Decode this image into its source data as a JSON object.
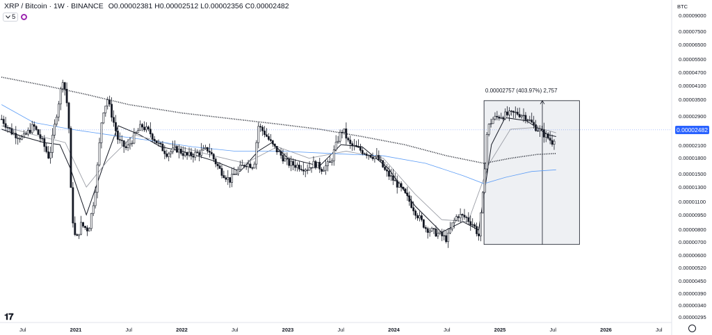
{
  "header": {
    "symbol": "XRP / Bitcoin · 1W · BINANCE",
    "open_label": "O",
    "open": "0.00002381",
    "high_label": "H",
    "high": "0.00002512",
    "low_label": "L",
    "low": "0.00002356",
    "close_label": "C",
    "close": "0.00002482",
    "indicators_count": "5"
  },
  "scale_currency": "BTC",
  "current_price": "0.00002482",
  "measure_label": "0.00002757 (403.97%) 2,757",
  "colors": {
    "candle": "#131722",
    "ma_black": "#131722",
    "ma_gray": "#9b9ea6",
    "ma_blue": "#5b9cf6",
    "ma_dotted": "#131722",
    "measure_fill": "#eef0f3",
    "badge": "#2962ff"
  },
  "icons": {
    "logo": "tradingview-logo-icon",
    "settings": "gear-icon",
    "toggle": "chevron-down-icon",
    "indicator": "indicator-circle-icon"
  },
  "chart_data": {
    "type": "candlestick",
    "title": "XRP / Bitcoin · 1W · BINANCE",
    "y_scale": "log",
    "y_ticks": [
      "0.00009000",
      "0.00007500",
      "0.00006500",
      "0.00005500",
      "0.00004700",
      "0.00004100",
      "0.00003500",
      "0.00002900",
      "0.00002500",
      "0.00002100",
      "0.00001800",
      "0.00001500",
      "0.00001300",
      "0.00001100",
      "0.00000950",
      "0.00000800",
      "0.00000700",
      "0.00000600",
      "0.00000520",
      "0.00000450",
      "0.00000390",
      "0.00000340",
      "0.00000295"
    ],
    "x_ticks": [
      "Jul",
      "2021",
      "Jul",
      "2022",
      "Jul",
      "2023",
      "Jul",
      "2024",
      "Jul",
      "2025",
      "Jul",
      "2026",
      "Jul"
    ],
    "x_tick_years": [
      2020.5,
      2021.0,
      2021.5,
      2022.0,
      2022.5,
      2023.0,
      2023.5,
      2024.0,
      2024.5,
      2025.0,
      2025.5,
      2026.0,
      2026.5
    ],
    "price_path": [
      [
        2020.3,
        2.8e-05
      ],
      [
        2020.4,
        2.4e-05
      ],
      [
        2020.5,
        2.25e-05
      ],
      [
        2020.6,
        2.6e-05
      ],
      [
        2020.68,
        2.2e-05
      ],
      [
        2020.75,
        1.8e-05
      ],
      [
        2020.82,
        3e-05
      ],
      [
        2020.88,
        4.5e-05
      ],
      [
        2020.93,
        3e-05
      ],
      [
        2020.96,
        1e-05
      ],
      [
        2021.0,
        7e-06
      ],
      [
        2021.05,
        8.5e-06
      ],
      [
        2021.12,
        8e-06
      ],
      [
        2021.18,
        1.2e-05
      ],
      [
        2021.25,
        3e-05
      ],
      [
        2021.3,
        3.5e-05
      ],
      [
        2021.35,
        2.8e-05
      ],
      [
        2021.4,
        2.2e-05
      ],
      [
        2021.48,
        2e-05
      ],
      [
        2021.55,
        2.3e-05
      ],
      [
        2021.62,
        2.6e-05
      ],
      [
        2021.7,
        2.4e-05
      ],
      [
        2021.78,
        2.1e-05
      ],
      [
        2021.86,
        1.9e-05
      ],
      [
        2021.95,
        2e-05
      ],
      [
        2022.05,
        1.85e-05
      ],
      [
        2022.15,
        1.9e-05
      ],
      [
        2022.25,
        2e-05
      ],
      [
        2022.35,
        1.6e-05
      ],
      [
        2022.45,
        1.4e-05
      ],
      [
        2022.52,
        1.55e-05
      ],
      [
        2022.6,
        1.7e-05
      ],
      [
        2022.68,
        1.65e-05
      ],
      [
        2022.72,
        2.6e-05
      ],
      [
        2022.78,
        2.4e-05
      ],
      [
        2022.85,
        2.1e-05
      ],
      [
        2022.92,
        1.9e-05
      ],
      [
        2023.0,
        1.7e-05
      ],
      [
        2023.1,
        1.65e-05
      ],
      [
        2023.18,
        1.6e-05
      ],
      [
        2023.25,
        1.7e-05
      ],
      [
        2023.32,
        1.6e-05
      ],
      [
        2023.4,
        1.7e-05
      ],
      [
        2023.48,
        2.3e-05
      ],
      [
        2023.52,
        2.5e-05
      ],
      [
        2023.58,
        2.1e-05
      ],
      [
        2023.66,
        2e-05
      ],
      [
        2023.75,
        1.9e-05
      ],
      [
        2023.85,
        1.8e-05
      ],
      [
        2023.92,
        1.55e-05
      ],
      [
        2024.0,
        1.4e-05
      ],
      [
        2024.08,
        1.25e-05
      ],
      [
        2024.15,
        1.1e-05
      ],
      [
        2024.22,
        9.5e-06
      ],
      [
        2024.3,
        8.2e-06
      ],
      [
        2024.38,
        7.8e-06
      ],
      [
        2024.45,
        7.5e-06
      ],
      [
        2024.5,
        7.2e-06
      ],
      [
        2024.55,
        8.5e-06
      ],
      [
        2024.6,
        9.5e-06
      ],
      [
        2024.68,
        9.2e-06
      ],
      [
        2024.75,
        8.5e-06
      ],
      [
        2024.8,
        7.5e-06
      ],
      [
        2024.84,
        1.2e-05
      ],
      [
        2024.88,
        2.5e-05
      ],
      [
        2024.93,
        2.8e-05
      ],
      [
        2025.0,
        2.9e-05
      ],
      [
        2025.08,
        2.95e-05
      ],
      [
        2025.16,
        3e-05
      ],
      [
        2025.24,
        2.9e-05
      ],
      [
        2025.32,
        2.6e-05
      ],
      [
        2025.4,
        2.4e-05
      ],
      [
        2025.46,
        2.25e-05
      ],
      [
        2025.5,
        2.15e-05
      ],
      [
        2025.53,
        2.48e-05
      ]
    ],
    "moving_averages": [
      {
        "style": "black-thin",
        "points": [
          [
            2020.3,
            2.5e-05
          ],
          [
            2020.5,
            2.3e-05
          ],
          [
            2020.7,
            2.15e-05
          ],
          [
            2020.85,
            2.1e-05
          ],
          [
            2020.95,
            1.6e-05
          ],
          [
            2021.1,
            9.5e-06
          ],
          [
            2021.25,
            1.6e-05
          ],
          [
            2021.4,
            2.6e-05
          ],
          [
            2021.6,
            2.35e-05
          ],
          [
            2021.8,
            2.05e-05
          ],
          [
            2022.0,
            1.95e-05
          ],
          [
            2022.3,
            1.75e-05
          ],
          [
            2022.55,
            1.55e-05
          ],
          [
            2022.72,
            1.95e-05
          ],
          [
            2022.85,
            2.15e-05
          ],
          [
            2023.0,
            1.8e-05
          ],
          [
            2023.3,
            1.65e-05
          ],
          [
            2023.5,
            2.1e-05
          ],
          [
            2023.7,
            2.05e-05
          ],
          [
            2023.95,
            1.6e-05
          ],
          [
            2024.2,
            1.05e-05
          ],
          [
            2024.45,
            7.8e-06
          ],
          [
            2024.65,
            8.8e-06
          ],
          [
            2024.8,
            8e-06
          ],
          [
            2024.92,
            2.1e-05
          ],
          [
            2025.05,
            2.85e-05
          ],
          [
            2025.25,
            2.75e-05
          ],
          [
            2025.45,
            2.35e-05
          ],
          [
            2025.53,
            2.3e-05
          ]
        ]
      },
      {
        "style": "gray",
        "points": [
          [
            2020.3,
            2.6e-05
          ],
          [
            2020.6,
            2.35e-05
          ],
          [
            2020.9,
            2.15e-05
          ],
          [
            2021.1,
            1.3e-05
          ],
          [
            2021.3,
            1.75e-05
          ],
          [
            2021.55,
            2.35e-05
          ],
          [
            2021.9,
            2.1e-05
          ],
          [
            2022.3,
            1.85e-05
          ],
          [
            2022.6,
            1.7e-05
          ],
          [
            2022.9,
            2.05e-05
          ],
          [
            2023.2,
            1.8e-05
          ],
          [
            2023.55,
            1.95e-05
          ],
          [
            2023.9,
            1.8e-05
          ],
          [
            2024.2,
            1.2e-05
          ],
          [
            2024.45,
            9e-06
          ],
          [
            2024.7,
            8.8e-06
          ],
          [
            2024.9,
            1.7e-05
          ],
          [
            2025.1,
            2.5e-05
          ],
          [
            2025.35,
            2.55e-05
          ],
          [
            2025.53,
            2.4e-05
          ]
        ]
      },
      {
        "style": "blue",
        "points": [
          [
            2020.3,
            3.3e-05
          ],
          [
            2020.6,
            2.7e-05
          ],
          [
            2020.95,
            2.5e-05
          ],
          [
            2021.3,
            2.35e-05
          ],
          [
            2021.7,
            2.2e-05
          ],
          [
            2022.1,
            2.05e-05
          ],
          [
            2022.5,
            1.95e-05
          ],
          [
            2022.95,
            1.95e-05
          ],
          [
            2023.4,
            1.9e-05
          ],
          [
            2023.9,
            1.85e-05
          ],
          [
            2024.3,
            1.7e-05
          ],
          [
            2024.65,
            1.48e-05
          ],
          [
            2024.85,
            1.35e-05
          ],
          [
            2025.05,
            1.45e-05
          ],
          [
            2025.3,
            1.55e-05
          ],
          [
            2025.53,
            1.58e-05
          ]
        ]
      },
      {
        "style": "dotted",
        "points": [
          [
            2020.3,
            4.5e-05
          ],
          [
            2020.7,
            4.1e-05
          ],
          [
            2021.1,
            3.7e-05
          ],
          [
            2021.5,
            3.3e-05
          ],
          [
            2022.0,
            3e-05
          ],
          [
            2022.5,
            2.8e-05
          ],
          [
            2022.9,
            2.65e-05
          ],
          [
            2023.3,
            2.5e-05
          ],
          [
            2023.7,
            2.3e-05
          ],
          [
            2024.1,
            2.1e-05
          ],
          [
            2024.5,
            1.85e-05
          ],
          [
            2024.85,
            1.7e-05
          ],
          [
            2025.1,
            1.8e-05
          ],
          [
            2025.35,
            1.88e-05
          ],
          [
            2025.53,
            1.9e-05
          ]
        ]
      }
    ],
    "measure": {
      "x_start": 2024.85,
      "x_end": 2025.75,
      "x_arrow": 2025.4,
      "low": 6.8e-06,
      "high": 3.45e-05,
      "label": "0.00002757 (403.97%) 2,757"
    },
    "last_price": 2.482e-05,
    "grid": false,
    "legend": "top-left"
  }
}
